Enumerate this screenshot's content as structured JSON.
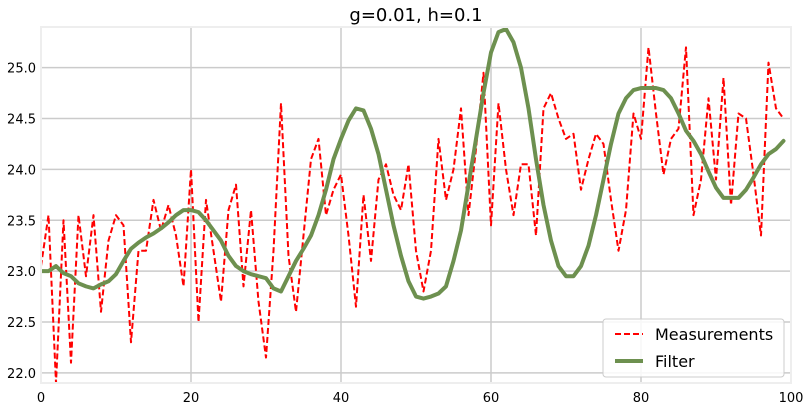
{
  "chart_data": {
    "type": "line",
    "title": "g=0.01, h=0.1",
    "xlabel": "",
    "ylabel": "",
    "xlim": [
      0,
      100
    ],
    "ylim": [
      21.9,
      25.4
    ],
    "x_ticks": [
      0,
      20,
      40,
      60,
      80,
      100
    ],
    "y_ticks": [
      22.0,
      22.5,
      23.0,
      23.5,
      24.0,
      24.5,
      25.0
    ],
    "grid": true,
    "legend_position": "lower-right",
    "series": [
      {
        "name": "Measurements",
        "color": "#ff0000",
        "style": "dashed",
        "x": [
          0,
          1,
          2,
          3,
          4,
          5,
          6,
          7,
          8,
          9,
          10,
          11,
          12,
          13,
          14,
          15,
          16,
          17,
          18,
          19,
          20,
          21,
          22,
          23,
          24,
          25,
          26,
          27,
          28,
          29,
          30,
          31,
          32,
          33,
          34,
          35,
          36,
          37,
          38,
          39,
          40,
          41,
          42,
          43,
          44,
          45,
          46,
          47,
          48,
          49,
          50,
          51,
          52,
          53,
          54,
          55,
          56,
          57,
          58,
          59,
          60,
          61,
          62,
          63,
          64,
          65,
          66,
          67,
          68,
          69,
          70,
          71,
          72,
          73,
          74,
          75,
          76,
          77,
          78,
          79,
          80,
          81,
          82,
          83,
          84,
          85,
          86,
          87,
          88,
          89,
          90,
          91,
          92,
          93,
          94,
          95,
          96,
          97,
          98,
          99
        ],
        "values": [
          23.05,
          23.55,
          21.9,
          23.5,
          22.1,
          23.55,
          22.95,
          23.55,
          22.6,
          23.3,
          23.55,
          23.45,
          22.3,
          23.2,
          23.2,
          23.7,
          23.4,
          23.65,
          23.35,
          22.85,
          24.0,
          22.5,
          23.7,
          23.2,
          22.7,
          23.6,
          23.85,
          22.85,
          23.6,
          22.7,
          22.15,
          23.2,
          24.65,
          23.15,
          22.6,
          23.35,
          24.1,
          24.3,
          23.55,
          23.8,
          23.95,
          23.35,
          22.65,
          23.75,
          23.1,
          23.9,
          24.05,
          23.75,
          23.6,
          24.05,
          23.2,
          22.8,
          23.2,
          24.3,
          23.7,
          24.0,
          24.6,
          23.55,
          24.2,
          24.95,
          23.45,
          24.65,
          24.0,
          23.55,
          24.05,
          24.05,
          23.35,
          24.6,
          24.75,
          24.5,
          24.3,
          24.35,
          23.8,
          24.1,
          24.35,
          24.25,
          23.7,
          23.2,
          23.6,
          24.55,
          24.3,
          25.2,
          24.55,
          23.95,
          24.3,
          24.4,
          25.2,
          23.55,
          23.9,
          24.7,
          23.9,
          24.9,
          23.65,
          24.55,
          24.5,
          23.95,
          23.35,
          25.05,
          24.6,
          24.5
        ]
      },
      {
        "name": "Filter",
        "color": "#6d904f",
        "style": "solid",
        "x": [
          0,
          1,
          2,
          3,
          4,
          5,
          6,
          7,
          8,
          9,
          10,
          11,
          12,
          13,
          14,
          15,
          16,
          17,
          18,
          19,
          20,
          21,
          22,
          23,
          24,
          25,
          26,
          27,
          28,
          29,
          30,
          31,
          32,
          33,
          34,
          35,
          36,
          37,
          38,
          39,
          40,
          41,
          42,
          43,
          44,
          45,
          46,
          47,
          48,
          49,
          50,
          51,
          52,
          53,
          54,
          55,
          56,
          57,
          58,
          59,
          60,
          61,
          62,
          63,
          64,
          65,
          66,
          67,
          68,
          69,
          70,
          71,
          72,
          73,
          74,
          75,
          76,
          77,
          78,
          79,
          80,
          81,
          82,
          83,
          84,
          85,
          86,
          87,
          88,
          89,
          90,
          91,
          92,
          93,
          94,
          95,
          96,
          97,
          98,
          99
        ],
        "values": [
          23.0,
          23.0,
          23.05,
          22.98,
          22.95,
          22.88,
          22.85,
          22.83,
          22.87,
          22.9,
          22.97,
          23.1,
          23.22,
          23.28,
          23.33,
          23.37,
          23.42,
          23.48,
          23.55,
          23.6,
          23.6,
          23.58,
          23.5,
          23.4,
          23.3,
          23.15,
          23.05,
          23.0,
          22.97,
          22.95,
          22.93,
          22.83,
          22.8,
          22.95,
          23.1,
          23.22,
          23.35,
          23.55,
          23.8,
          24.1,
          24.3,
          24.48,
          24.6,
          24.58,
          24.4,
          24.15,
          23.8,
          23.45,
          23.15,
          22.9,
          22.75,
          22.73,
          22.75,
          22.78,
          22.85,
          23.1,
          23.4,
          23.85,
          24.3,
          24.75,
          25.15,
          25.35,
          25.38,
          25.25,
          25.0,
          24.6,
          24.1,
          23.65,
          23.3,
          23.05,
          22.95,
          22.95,
          23.05,
          23.25,
          23.55,
          23.9,
          24.25,
          24.55,
          24.7,
          24.78,
          24.8,
          24.8,
          24.8,
          24.78,
          24.7,
          24.55,
          24.38,
          24.28,
          24.15,
          23.98,
          23.82,
          23.72,
          23.72,
          23.72,
          23.8,
          23.92,
          24.05,
          24.15,
          24.2,
          24.28
        ]
      }
    ]
  }
}
